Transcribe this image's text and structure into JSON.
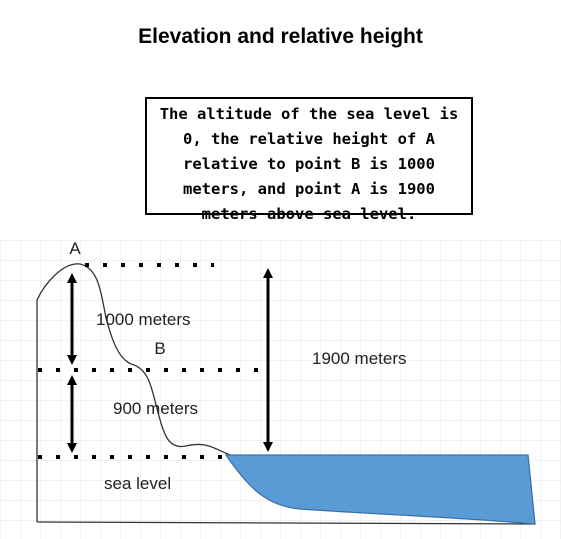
{
  "title": "Elevation and relative height",
  "note": "The altitude of the sea level is 0, the relative height of A relative to point B is 1000 meters, and point A is 1900 meters above sea level.",
  "labels": {
    "point_a": "A",
    "point_b": "B",
    "relative_height": "1000 meters",
    "b_height": "900 meters",
    "a_altitude": "1900 meters",
    "sea_level": "sea level"
  },
  "colors": {
    "sea": "#5b9bd5",
    "grid": "#e6e6e6",
    "line": "#000000"
  }
}
